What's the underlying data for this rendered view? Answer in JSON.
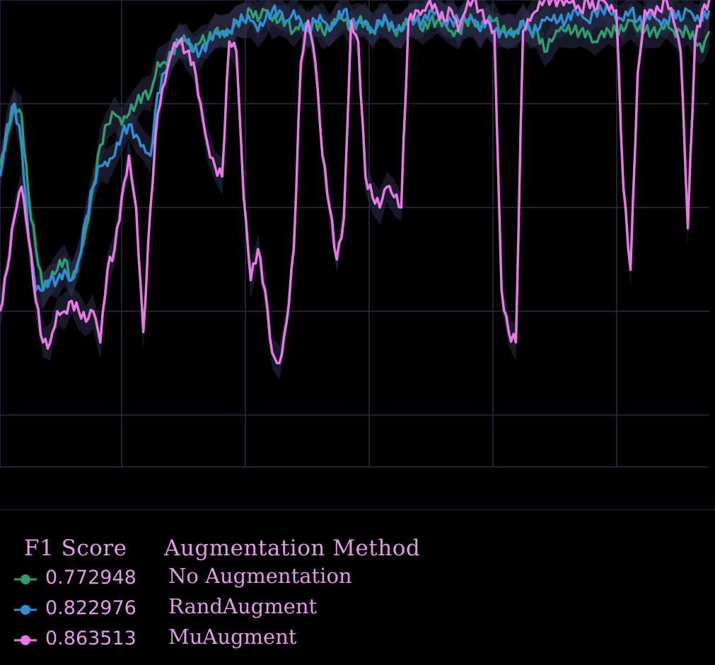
{
  "chart_data": {
    "type": "line",
    "title": "",
    "xlabel": "",
    "ylabel": "",
    "grid": true,
    "ylim": [
      0.55,
      1.0
    ],
    "x_count": 100,
    "series": [
      {
        "name": "No Augmentation",
        "color": "#2e9e6e",
        "values": [
          0.84,
          0.87,
          0.9,
          0.89,
          0.81,
          0.76,
          0.72,
          0.73,
          0.74,
          0.75,
          0.73,
          0.75,
          0.78,
          0.82,
          0.86,
          0.88,
          0.89,
          0.88,
          0.89,
          0.9,
          0.91,
          0.91,
          0.94,
          0.94,
          0.95,
          0.96,
          0.96,
          0.95,
          0.96,
          0.96,
          0.97,
          0.97,
          0.97,
          0.98,
          0.98,
          0.99,
          0.98,
          0.99,
          0.98,
          0.98,
          0.98,
          0.97,
          0.98,
          0.97,
          0.98,
          0.97,
          0.97,
          0.98,
          0.98,
          0.97,
          0.98,
          0.98,
          0.97,
          0.98,
          0.98,
          0.97,
          0.97,
          0.98,
          0.98,
          0.97,
          0.98,
          0.98,
          0.98,
          0.97,
          0.97,
          0.98,
          0.98,
          0.97,
          0.98,
          0.98,
          0.97,
          0.97,
          0.97,
          0.98,
          0.97,
          0.97,
          0.95,
          0.96,
          0.97,
          0.97,
          0.97,
          0.97,
          0.97,
          0.96,
          0.97,
          0.97,
          0.97,
          0.97,
          0.98,
          0.97,
          0.97,
          0.97,
          0.97,
          0.98,
          0.97,
          0.97,
          0.97,
          0.96,
          0.95,
          0.97
        ]
      },
      {
        "name": "RandAugment",
        "color": "#2f8ed4",
        "values": [
          0.83,
          0.88,
          0.9,
          0.86,
          0.77,
          0.72,
          0.72,
          0.73,
          0.73,
          0.74,
          0.73,
          0.75,
          0.79,
          0.82,
          0.84,
          0.84,
          0.85,
          0.87,
          0.88,
          0.87,
          0.86,
          0.85,
          0.91,
          0.93,
          0.95,
          0.96,
          0.96,
          0.95,
          0.95,
          0.96,
          0.97,
          0.97,
          0.97,
          0.98,
          0.98,
          0.98,
          0.97,
          0.98,
          0.99,
          0.99,
          0.98,
          0.99,
          0.98,
          0.97,
          0.98,
          0.98,
          0.97,
          0.98,
          0.99,
          0.98,
          0.98,
          0.98,
          0.97,
          0.98,
          0.98,
          0.97,
          0.97,
          0.98,
          0.98,
          0.98,
          0.99,
          0.99,
          0.98,
          0.98,
          0.98,
          0.98,
          0.98,
          0.97,
          0.98,
          0.97,
          0.97,
          0.97,
          0.97,
          0.98,
          0.97,
          0.97,
          0.98,
          0.98,
          0.98,
          0.98,
          0.99,
          0.99,
          0.98,
          0.99,
          0.99,
          0.99,
          0.98,
          0.98,
          0.99,
          0.98,
          0.98,
          0.99,
          0.98,
          0.98,
          0.99,
          0.98,
          0.99,
          0.98,
          0.98,
          0.99
        ]
      },
      {
        "name": "MuAugment",
        "color": "#e879e3",
        "values": [
          0.7,
          0.74,
          0.79,
          0.82,
          0.77,
          0.71,
          0.67,
          0.67,
          0.7,
          0.7,
          0.71,
          0.7,
          0.69,
          0.7,
          0.67,
          0.74,
          0.76,
          0.81,
          0.85,
          0.8,
          0.68,
          0.8,
          0.89,
          0.92,
          0.95,
          0.96,
          0.95,
          0.94,
          0.9,
          0.86,
          0.84,
          0.83,
          0.96,
          0.95,
          0.81,
          0.73,
          0.76,
          0.72,
          0.66,
          0.65,
          0.69,
          0.76,
          0.94,
          0.98,
          0.94,
          0.85,
          0.8,
          0.75,
          0.79,
          0.98,
          0.96,
          0.83,
          0.81,
          0.8,
          0.82,
          0.81,
          0.8,
          0.98,
          0.99,
          0.99,
          1.0,
          0.99,
          0.98,
          0.99,
          0.97,
          0.99,
          1.0,
          0.99,
          0.98,
          0.97,
          0.72,
          0.68,
          0.67,
          0.97,
          0.98,
          0.99,
          1.0,
          1.0,
          1.0,
          1.0,
          1.0,
          0.99,
          1.0,
          0.99,
          1.0,
          0.99,
          0.99,
          0.82,
          0.74,
          0.93,
          0.99,
          0.99,
          0.99,
          1.0,
          0.98,
          0.95,
          0.78,
          0.96,
          0.99,
          1.0
        ]
      }
    ]
  },
  "legend": {
    "score_header": "F1 Score",
    "method_header": "Augmentation Method",
    "rows": [
      {
        "value": "0.772948",
        "label": "No Augmentation",
        "color": "#2e9e6e"
      },
      {
        "value": "0.822976",
        "label": "RandAugment",
        "color": "#2f8ed4"
      },
      {
        "value": "0.863513",
        "label": "MuAugment",
        "color": "#e879e3"
      }
    ]
  }
}
